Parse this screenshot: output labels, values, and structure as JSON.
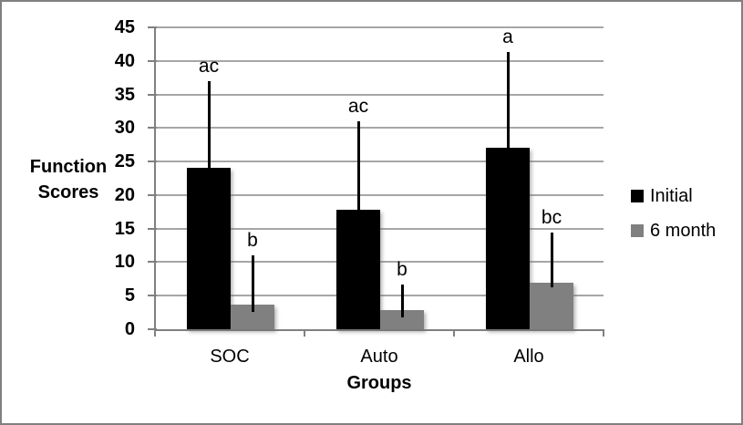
{
  "chart_data": {
    "type": "bar",
    "title": "",
    "categories": [
      "SOC",
      "Auto",
      "Allo"
    ],
    "series": [
      {
        "name": "Initial",
        "color": "#000000",
        "values": [
          24,
          17.8,
          27
        ],
        "error_top": [
          37,
          31,
          41.3
        ],
        "error_bottom": [
          23,
          17,
          26
        ],
        "sig_letters": [
          "ac",
          "ac",
          "a"
        ]
      },
      {
        "name": "6 month",
        "color": "#808080",
        "values": [
          3.7,
          2.9,
          7
        ],
        "error_top": [
          11,
          6.7,
          14.4
        ],
        "error_bottom": [
          2.6,
          1.8,
          6.2
        ],
        "sig_letters": [
          "b",
          "b",
          "bc"
        ]
      }
    ],
    "ylabel_lines": [
      "Function",
      "Scores"
    ],
    "xlabel": "Groups",
    "ylim": [
      0,
      45
    ],
    "ytick_step": 5,
    "grid": true,
    "legend_position": "middle-right",
    "colors": {
      "gridline": "#a6a6a6",
      "axis": "#808080",
      "frame_border": "#808080",
      "background": "#ffffff",
      "text": "#000000"
    }
  }
}
